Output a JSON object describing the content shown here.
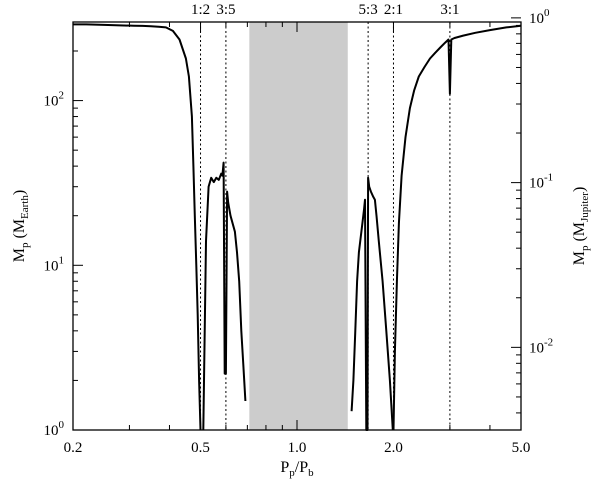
{
  "chart_data": {
    "type": "line",
    "xlabel": "P_p/P_b",
    "ylabel": "M_p (M_Earth)",
    "y2label": "M_p (M_Jupiter)",
    "xscale": "log",
    "yscale": "log",
    "xlim": [
      0.2,
      5.0
    ],
    "ylim": [
      1,
      300
    ],
    "y2lim_mjup": [
      0.00315,
      0.944
    ],
    "xticks": [
      {
        "value": 0.2,
        "label": "0.2"
      },
      {
        "value": 0.5,
        "label": "0.5"
      },
      {
        "value": 1.0,
        "label": "1.0"
      },
      {
        "value": 2.0,
        "label": "2.0"
      },
      {
        "value": 5.0,
        "label": "5.0"
      }
    ],
    "yticks": [
      {
        "value": 1,
        "base": "10",
        "exp": "0"
      },
      {
        "value": 10,
        "base": "10",
        "exp": "1"
      },
      {
        "value": 100,
        "base": "10",
        "exp": "2"
      }
    ],
    "y2ticks": [
      {
        "value": 0.01,
        "base": "10",
        "exp": "-2"
      },
      {
        "value": 0.1,
        "base": "10",
        "exp": "-1"
      },
      {
        "value": 1,
        "base": "10",
        "exp": "0"
      }
    ],
    "shaded_region": {
      "x_from": 0.71,
      "x_to": 1.44,
      "color": "#cccccc"
    },
    "resonances": [
      {
        "label": "1:2",
        "x": 0.5
      },
      {
        "label": "3:5",
        "x": 0.6
      },
      {
        "label": "5:3",
        "x": 1.667
      },
      {
        "label": "2:1",
        "x": 2.0
      },
      {
        "label": "3:1",
        "x": 3.0
      }
    ],
    "series": [
      {
        "segment": "inner",
        "points": [
          [
            0.2,
            290
          ],
          [
            0.22,
            290
          ],
          [
            0.25,
            288
          ],
          [
            0.28,
            286
          ],
          [
            0.31,
            285
          ],
          [
            0.33,
            284
          ],
          [
            0.35,
            283
          ],
          [
            0.37,
            281
          ],
          [
            0.39,
            278
          ],
          [
            0.41,
            265
          ],
          [
            0.43,
            235
          ],
          [
            0.45,
            180
          ],
          [
            0.46,
            140
          ],
          [
            0.47,
            80
          ],
          [
            0.475,
            40
          ],
          [
            0.48,
            20
          ],
          [
            0.485,
            10
          ],
          [
            0.49,
            5
          ],
          [
            0.495,
            2
          ],
          [
            0.5,
            1
          ]
        ]
      },
      {
        "segment": "inner-resonant",
        "points": [
          [
            0.51,
            1
          ],
          [
            0.52,
            14
          ],
          [
            0.53,
            30
          ],
          [
            0.54,
            34
          ],
          [
            0.55,
            32
          ],
          [
            0.56,
            34
          ],
          [
            0.57,
            33
          ],
          [
            0.58,
            36
          ],
          [
            0.585,
            35
          ],
          [
            0.59,
            42
          ],
          [
            0.595,
            2.2
          ],
          [
            0.6,
            2.2
          ],
          [
            0.605,
            28
          ],
          [
            0.61,
            24
          ],
          [
            0.62,
            20
          ],
          [
            0.64,
            16
          ],
          [
            0.65,
            12
          ],
          [
            0.66,
            8
          ],
          [
            0.67,
            4
          ],
          [
            0.68,
            2.5
          ],
          [
            0.69,
            1.5
          ]
        ]
      },
      {
        "segment": "outer-resonant",
        "points": [
          [
            1.48,
            1.3
          ],
          [
            1.5,
            2
          ],
          [
            1.52,
            4
          ],
          [
            1.54,
            8
          ],
          [
            1.56,
            12
          ],
          [
            1.6,
            18
          ],
          [
            1.62,
            22
          ],
          [
            1.63,
            25
          ],
          [
            1.645,
            1
          ],
          [
            1.66,
            1
          ],
          [
            1.667,
            34
          ],
          [
            1.68,
            30
          ],
          [
            1.7,
            28
          ],
          [
            1.73,
            26
          ],
          [
            1.75,
            25
          ],
          [
            1.77,
            20
          ],
          [
            1.8,
            14
          ],
          [
            1.85,
            8
          ],
          [
            1.9,
            4
          ],
          [
            1.95,
            2
          ],
          [
            1.99,
            1
          ]
        ]
      },
      {
        "segment": "outer",
        "points": [
          [
            2.0,
            1
          ],
          [
            2.02,
            3
          ],
          [
            2.05,
            8
          ],
          [
            2.08,
            18
          ],
          [
            2.12,
            35
          ],
          [
            2.18,
            60
          ],
          [
            2.25,
            90
          ],
          [
            2.32,
            115
          ],
          [
            2.4,
            140
          ],
          [
            2.5,
            160
          ],
          [
            2.6,
            180
          ],
          [
            2.7,
            195
          ],
          [
            2.8,
            210
          ],
          [
            2.9,
            225
          ],
          [
            2.97,
            235
          ],
          [
            3.0,
            110
          ],
          [
            3.03,
            235
          ],
          [
            3.1,
            240
          ],
          [
            3.3,
            248
          ],
          [
            3.6,
            258
          ],
          [
            4.0,
            268
          ],
          [
            4.5,
            278
          ],
          [
            5.0,
            285
          ]
        ]
      }
    ]
  }
}
